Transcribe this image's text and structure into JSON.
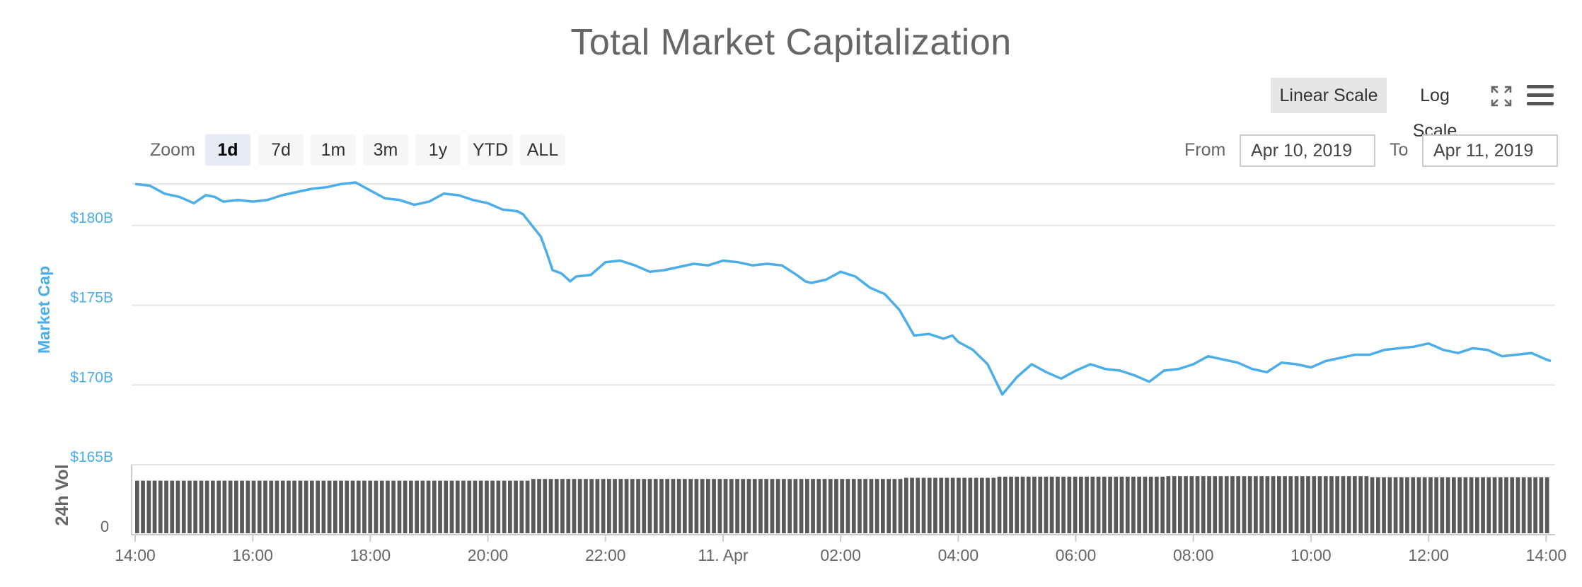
{
  "title": "Total Market Capitalization",
  "controls": {
    "linear_scale": "Linear Scale",
    "log_scale": "Log Scale",
    "zoom_label": "Zoom",
    "zoom_buttons": [
      "1d",
      "7d",
      "1m",
      "3m",
      "1y",
      "YTD",
      "ALL"
    ],
    "zoom_active": "1d",
    "from_label": "From",
    "from_value": "Apr 10, 2019",
    "to_label": "To",
    "to_value": "Apr 11, 2019",
    "fullscreen_icon": "fullscreen-icon",
    "menu_icon": "hamburger-menu-icon"
  },
  "colors": {
    "line": "#4aaee8",
    "volume_bar": "#595959",
    "axis_text_market": "#4aaee8",
    "axis_text_volume": "#666666",
    "grid": "#e6e6e6",
    "active_scale_bg": "#e6e6e6",
    "active_zoom_bg": "#e6ebf5"
  },
  "chart_data": {
    "type": "line",
    "title": "Total Market Capitalization",
    "ylabel": "Market Cap",
    "y_unit": "$B",
    "ylim": [
      165,
      182.7
    ],
    "y_ticks": [
      {
        "value": 180,
        "label": "$180B"
      },
      {
        "value": 175,
        "label": "$175B"
      },
      {
        "value": 170,
        "label": "$170B"
      },
      {
        "value": 165,
        "label": "$165B"
      }
    ],
    "x_ticks": [
      "14:00",
      "16:00",
      "18:00",
      "20:00",
      "22:00",
      "11. Apr",
      "02:00",
      "04:00",
      "06:00",
      "08:00",
      "10:00",
      "12:00",
      "14:00"
    ],
    "x_range": [
      "Apr 10, 2019 14:00",
      "Apr 11, 2019 14:05"
    ],
    "grid": true,
    "series": [
      {
        "name": "Market Cap",
        "x_hours": [
          0,
          0.25,
          0.5,
          0.75,
          1.0,
          1.2,
          1.35,
          1.5,
          1.75,
          2.0,
          2.25,
          2.5,
          2.75,
          3.0,
          3.25,
          3.5,
          3.75,
          4.0,
          4.25,
          4.5,
          4.75,
          5.0,
          5.25,
          5.5,
          5.75,
          6.0,
          6.25,
          6.5,
          6.6,
          6.75,
          6.9,
          7.0,
          7.1,
          7.25,
          7.4,
          7.5,
          7.75,
          8.0,
          8.25,
          8.5,
          8.75,
          9.0,
          9.25,
          9.5,
          9.75,
          10.0,
          10.25,
          10.5,
          10.75,
          11.0,
          11.25,
          11.4,
          11.5,
          11.75,
          12.0,
          12.25,
          12.5,
          12.75,
          13.0,
          13.25,
          13.5,
          13.75,
          13.9,
          14.0,
          14.25,
          14.5,
          14.75,
          15.0,
          15.25,
          15.5,
          15.75,
          16.0,
          16.25,
          16.5,
          16.75,
          17.0,
          17.25,
          17.5,
          17.75,
          18.0,
          18.25,
          18.5,
          18.75,
          19.0,
          19.25,
          19.5,
          19.75,
          20.0,
          20.25,
          20.5,
          20.75,
          21.0,
          21.25,
          21.5,
          21.75,
          22.0,
          22.25,
          22.5,
          22.75,
          23.0,
          23.25,
          23.5,
          23.75,
          24.0,
          24.08
        ],
        "values": [
          182.6,
          182.5,
          182.0,
          181.8,
          181.4,
          181.9,
          181.8,
          181.5,
          181.6,
          181.5,
          181.6,
          181.9,
          182.1,
          182.3,
          182.4,
          182.6,
          182.7,
          182.2,
          181.7,
          181.6,
          181.3,
          181.5,
          182.0,
          181.9,
          181.6,
          181.4,
          181.0,
          180.9,
          180.7,
          180.0,
          179.3,
          178.3,
          177.2,
          177.0,
          176.5,
          176.8,
          176.9,
          177.7,
          177.8,
          177.5,
          177.1,
          177.2,
          177.4,
          177.6,
          177.5,
          177.8,
          177.7,
          177.5,
          177.6,
          177.5,
          176.9,
          176.5,
          176.4,
          176.6,
          177.1,
          176.8,
          176.1,
          175.7,
          174.7,
          173.1,
          173.2,
          172.9,
          173.1,
          172.7,
          172.2,
          171.3,
          169.4,
          170.5,
          171.3,
          170.8,
          170.4,
          170.9,
          171.3,
          171.0,
          170.9,
          170.6,
          170.2,
          170.9,
          171.0,
          171.3,
          171.8,
          171.6,
          171.4,
          171.0,
          170.8,
          171.4,
          171.3,
          171.1,
          171.5,
          171.7,
          171.9,
          171.9,
          172.2,
          172.3,
          172.4,
          172.6,
          172.2,
          172.0,
          172.3,
          172.2,
          171.8,
          171.9,
          172.0,
          171.6,
          171.5
        ]
      },
      {
        "name": "24h Vol",
        "role": "volume",
        "ylabel": "24h Vol",
        "y_ticks": [
          {
            "value": 0,
            "label": "0"
          }
        ],
        "bar_count": 243,
        "relative_level_segments": [
          {
            "from_hour": 0,
            "to_hour": 6.7,
            "level": 0.93
          },
          {
            "from_hour": 6.7,
            "to_hour": 13.0,
            "level": 0.96
          },
          {
            "from_hour": 13.0,
            "to_hour": 14.6,
            "level": 0.98
          },
          {
            "from_hour": 14.6,
            "to_hour": 17.5,
            "level": 1.0
          },
          {
            "from_hour": 17.5,
            "to_hour": 21.0,
            "level": 1.01
          },
          {
            "from_hour": 21.0,
            "to_hour": 24.08,
            "level": 0.99
          }
        ]
      }
    ]
  }
}
